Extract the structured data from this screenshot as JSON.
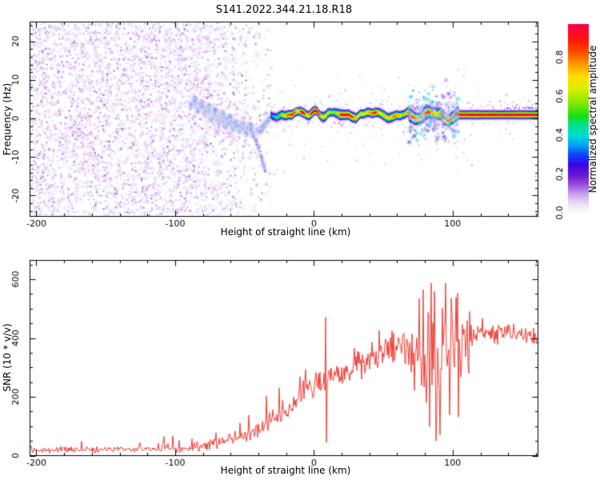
{
  "title": "S141.2022.344.21.18.R18",
  "chart_data": [
    {
      "type": "heatmap",
      "title": "S141.2022.344.21.18.R18",
      "xlabel": "Height of straight line (km)",
      "ylabel": "Frequency (Hz)",
      "xlim": [
        -204.6,
        161.5
      ],
      "ylim": [
        -25.4,
        25.0
      ],
      "xticks": [
        -200,
        -100,
        0,
        100
      ],
      "xminor_step": 20,
      "yticks": [
        -20,
        -10,
        0,
        10,
        20
      ],
      "yminor_step": 2,
      "grid": false,
      "colorbar": {
        "label": "Normalized spectral amplitude",
        "ticks": [
          0.0,
          0.2,
          0.4,
          0.6,
          0.8
        ],
        "stops": [
          [
            0.0,
            "#ffffff"
          ],
          [
            0.05,
            "#eadcf8"
          ],
          [
            0.1,
            "#c79fec"
          ],
          [
            0.15,
            "#9747df"
          ],
          [
            0.2,
            "#6214d2"
          ],
          [
            0.25,
            "#3807e8"
          ],
          [
            0.3,
            "#0b42ff"
          ],
          [
            0.35,
            "#00a3f5"
          ],
          [
            0.4,
            "#00ddd0"
          ],
          [
            0.45,
            "#00e097"
          ],
          [
            0.5,
            "#16e016"
          ],
          [
            0.57,
            "#8ae800"
          ],
          [
            0.64,
            "#daee00"
          ],
          [
            0.7,
            "#ffdf00"
          ],
          [
            0.76,
            "#ffa300"
          ],
          [
            0.82,
            "#ff5500"
          ],
          [
            0.88,
            "#ff1e00"
          ],
          [
            0.94,
            "#fb0734"
          ],
          [
            1.0,
            "#e9005f"
          ]
        ]
      },
      "noise_field": {
        "full_until_km": -89,
        "fade_until_km": -27,
        "value_range": [
          0.03,
          0.24
        ]
      },
      "chain_trace_km_hz": [
        [
          -88.5,
          3.2
        ],
        [
          -86,
          5.3
        ],
        [
          -83.5,
          1.8
        ],
        [
          -81,
          4.2
        ],
        [
          -78.5,
          0.8
        ],
        [
          -76,
          3.2
        ],
        [
          -73.5,
          -0.6
        ],
        [
          -71,
          2.4
        ],
        [
          -68.5,
          -1.2
        ],
        [
          -66,
          1.6
        ],
        [
          -63.5,
          -2.2
        ],
        [
          -61,
          0.6
        ],
        [
          -58.5,
          -2.8
        ],
        [
          -56,
          -0.8
        ],
        [
          -53.5,
          -3.4
        ],
        [
          -51,
          -1.2
        ],
        [
          -48.5,
          -3.8
        ],
        [
          -46,
          -1.6
        ],
        [
          -43.5,
          -4.4
        ],
        [
          -41,
          -2.6
        ],
        [
          -38.5,
          -3.6
        ],
        [
          -36,
          -1.8
        ],
        [
          -33.5,
          -0.6
        ],
        [
          -31,
          0.6
        ]
      ],
      "tail_trace_km_hz": [
        [
          -44,
          -3.5
        ],
        [
          -42,
          -5.5
        ],
        [
          -40,
          -7.5
        ],
        [
          -38.2,
          -9.8
        ],
        [
          -36.6,
          -11.8
        ],
        [
          -35.2,
          -13.5
        ]
      ],
      "echo_line": {
        "start_km": -31.5,
        "freq_hz": 1.1,
        "end_km": 161.5,
        "bump_km": 0.9,
        "peak_amplitude": 1.0
      },
      "turbulence_km": [
        68,
        104
      ],
      "right_fuzz_start_km": 110
    },
    {
      "type": "line",
      "xlabel": "Height of straight line (km)",
      "ylabel": "SNR (10 * v/v)",
      "xlim": [
        -204.6,
        161.5
      ],
      "ylim": [
        0,
        664
      ],
      "xticks": [
        -200,
        -100,
        0,
        100
      ],
      "xminor_step": 20,
      "yticks": [
        0,
        200,
        400,
        600
      ],
      "yminor_step": 50,
      "grid": false,
      "series": [
        {
          "name": "SNR",
          "color": "#ee3e36",
          "envelope_km_base_sd_p_amp": [
            [
              -205,
              20,
              13,
              0.02,
              40
            ],
            [
              -160,
              20,
              13,
              0.03,
              45
            ],
            [
              -120,
              22,
              14,
              0.04,
              50
            ],
            [
              -95,
              24,
              15,
              0.06,
              60
            ],
            [
              -85,
              30,
              17,
              0.1,
              80
            ],
            [
              -75,
              40,
              20,
              0.12,
              95
            ],
            [
              -65,
              48,
              22,
              0.12,
              100
            ],
            [
              -55,
              60,
              25,
              0.13,
              110
            ],
            [
              -48,
              70,
              28,
              0.15,
              140
            ],
            [
              -42,
              85,
              32,
              0.15,
              150
            ],
            [
              -36,
              100,
              36,
              0.14,
              150
            ],
            [
              -30,
              120,
              40,
              0.13,
              140
            ],
            [
              -24,
              140,
              44,
              0.12,
              130
            ],
            [
              -18,
              165,
              46,
              0.1,
              120
            ],
            [
              -12,
              190,
              48,
              0.09,
              110
            ],
            [
              -6,
              215,
              50,
              0.08,
              100
            ],
            [
              0,
              235,
              52,
              0.07,
              95
            ],
            [
              6,
              252,
              52,
              0.06,
              90
            ],
            [
              12,
              262,
              54,
              0.06,
              90
            ],
            [
              20,
              278,
              54,
              0.06,
              90
            ],
            [
              28,
              300,
              54,
              0.07,
              95
            ],
            [
              36,
              322,
              54,
              0.08,
              100
            ],
            [
              44,
              338,
              57,
              0.09,
              105
            ],
            [
              52,
              350,
              60,
              0.1,
              110
            ],
            [
              60,
              358,
              66,
              0.12,
              115
            ],
            [
              68,
              352,
              88,
              0.22,
              160
            ],
            [
              75,
              345,
              135,
              0.4,
              240
            ],
            [
              82,
              352,
              172,
              0.5,
              265
            ],
            [
              90,
              362,
              186,
              0.55,
              270
            ],
            [
              98,
              372,
              186,
              0.55,
              265
            ],
            [
              105,
              382,
              162,
              0.48,
              245
            ],
            [
              111,
              395,
              112,
              0.3,
              190
            ],
            [
              116,
              408,
              44,
              0.06,
              60
            ],
            [
              124,
              418,
              36,
              0.05,
              55
            ],
            [
              134,
              422,
              34,
              0.05,
              55
            ],
            [
              144,
              418,
              34,
              0.05,
              55
            ],
            [
              152,
              408,
              35,
              0.05,
              55
            ],
            [
              158,
              396,
              37,
              0.05,
              55
            ],
            [
              163,
              382,
              40,
              0.05,
              55
            ]
          ],
          "events": [
            {
              "km": 8.6,
              "value": 470
            },
            {
              "km": 9.2,
              "value": 45
            }
          ]
        }
      ]
    }
  ]
}
